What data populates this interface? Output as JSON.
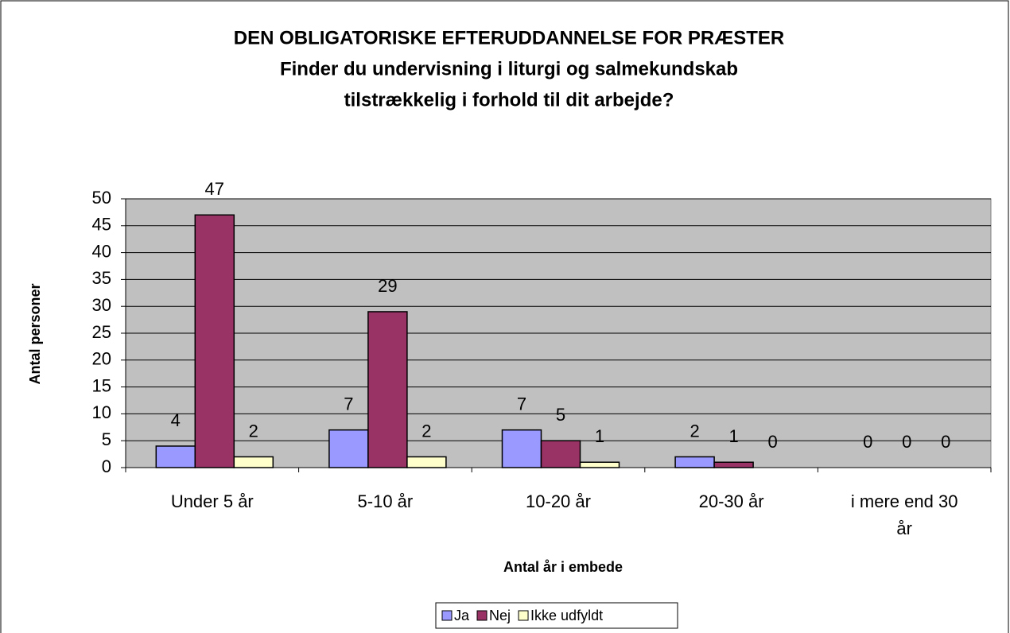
{
  "chart_data": {
    "type": "bar",
    "title": "DEN OBLIGATORISKE EFTERUDDANNELSE FOR PRÆSTER",
    "subtitle": [
      "Finder du undervisning i liturgi og salmekundskab",
      "tilstrækkelig i forhold til dit arbejde?"
    ],
    "x_label": "Antal år i embede",
    "y_label": "Antal personer",
    "categories": [
      "Under 5 år",
      "5-10 år",
      "10-20 år",
      "20-30 år",
      "i mere end 30 år"
    ],
    "series": [
      {
        "name": "Ja",
        "color": "#9999ff",
        "values": [
          4,
          7,
          7,
          2,
          0
        ]
      },
      {
        "name": "Nej",
        "color": "#993366",
        "values": [
          47,
          29,
          5,
          1,
          0
        ]
      },
      {
        "name": "Ikke udfyldt",
        "color": "#ffffcc",
        "values": [
          2,
          2,
          1,
          0,
          0
        ]
      }
    ],
    "ylim": [
      0,
      50
    ],
    "yticks": [
      0,
      5,
      10,
      15,
      20,
      25,
      30,
      35,
      40,
      45,
      50
    ],
    "grid": true,
    "legend": "bottom"
  }
}
